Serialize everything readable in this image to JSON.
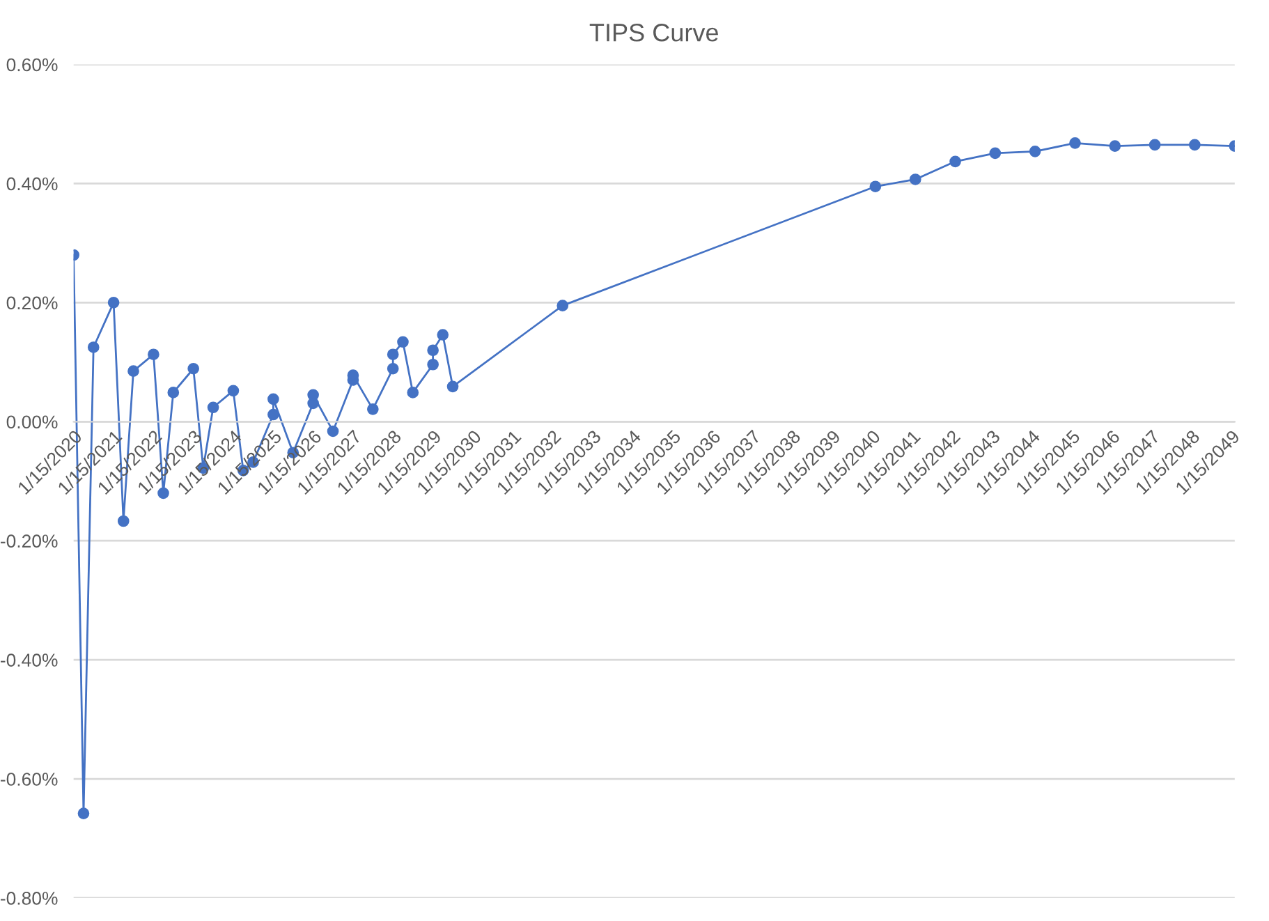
{
  "chart_data": {
    "type": "line",
    "title": "TIPS Curve",
    "x": [
      "2020-01-15",
      "2020-04-15",
      "2020-07-15",
      "2021-01-15",
      "2021-04-15",
      "2021-07-15",
      "2022-01-15",
      "2022-04-15",
      "2022-07-15",
      "2023-01-15",
      "2023-04-15",
      "2023-07-15",
      "2024-01-15",
      "2024-04-15",
      "2024-07-15",
      "2025-01-15",
      "2025-01-15",
      "2025-07-15",
      "2026-01-15",
      "2026-01-15",
      "2026-07-15",
      "2027-01-15",
      "2027-01-15",
      "2027-07-15",
      "2028-01-15",
      "2028-01-15",
      "2028-04-15",
      "2028-07-15",
      "2029-01-15",
      "2029-01-15",
      "2029-04-15",
      "2029-07-15",
      "2032-04-15",
      "2040-02-15",
      "2041-02-15",
      "2042-02-15",
      "2043-02-15",
      "2044-02-15",
      "2045-02-15",
      "2046-02-15",
      "2047-02-15",
      "2048-02-15",
      "2049-02-15"
    ],
    "series": [
      {
        "color": "#4472c4",
        "values": [
          0.28,
          -0.658,
          0.125,
          0.2,
          -0.167,
          0.085,
          0.113,
          -0.12,
          0.049,
          0.089,
          -0.078,
          0.024,
          0.052,
          -0.082,
          -0.068,
          0.012,
          0.038,
          -0.052,
          0.031,
          0.045,
          -0.016,
          0.07,
          0.078,
          0.021,
          0.089,
          0.113,
          0.134,
          0.049,
          0.096,
          0.12,
          0.146,
          0.059,
          0.195,
          0.395,
          0.407,
          0.437,
          0.451,
          0.454,
          0.468,
          0.463,
          0.465,
          0.465,
          0.463
        ]
      }
    ],
    "xlim": [
      "2020-01-15",
      "2049-02-15"
    ],
    "xticks": [
      {
        "value": "2020-01-15",
        "label": "1/15/2020"
      },
      {
        "value": "2021-01-15",
        "label": "1/15/2021"
      },
      {
        "value": "2022-01-15",
        "label": "1/15/2022"
      },
      {
        "value": "2023-01-15",
        "label": "1/15/2023"
      },
      {
        "value": "2024-01-15",
        "label": "1/15/2024"
      },
      {
        "value": "2025-01-15",
        "label": "1/15/2025"
      },
      {
        "value": "2026-01-15",
        "label": "1/15/2026"
      },
      {
        "value": "2027-01-15",
        "label": "1/15/2027"
      },
      {
        "value": "2028-01-15",
        "label": "1/15/2028"
      },
      {
        "value": "2029-01-15",
        "label": "1/15/2029"
      },
      {
        "value": "2030-01-15",
        "label": "1/15/2030"
      },
      {
        "value": "2031-01-15",
        "label": "1/15/2031"
      },
      {
        "value": "2032-01-15",
        "label": "1/15/2032"
      },
      {
        "value": "2033-01-15",
        "label": "1/15/2033"
      },
      {
        "value": "2034-01-15",
        "label": "1/15/2034"
      },
      {
        "value": "2035-01-15",
        "label": "1/15/2035"
      },
      {
        "value": "2036-01-15",
        "label": "1/15/2036"
      },
      {
        "value": "2037-01-15",
        "label": "1/15/2037"
      },
      {
        "value": "2038-01-15",
        "label": "1/15/2038"
      },
      {
        "value": "2039-01-15",
        "label": "1/15/2039"
      },
      {
        "value": "2040-01-15",
        "label": "1/15/2040"
      },
      {
        "value": "2041-01-15",
        "label": "1/15/2041"
      },
      {
        "value": "2042-01-15",
        "label": "1/15/2042"
      },
      {
        "value": "2043-01-15",
        "label": "1/15/2043"
      },
      {
        "value": "2044-01-15",
        "label": "1/15/2044"
      },
      {
        "value": "2045-01-15",
        "label": "1/15/2045"
      },
      {
        "value": "2046-01-15",
        "label": "1/15/2046"
      },
      {
        "value": "2047-01-15",
        "label": "1/15/2047"
      },
      {
        "value": "2048-01-15",
        "label": "1/15/2048"
      },
      {
        "value": "2049-01-15",
        "label": "1/15/2049"
      }
    ],
    "ylim": [
      -0.8,
      0.6
    ],
    "yticks": [
      {
        "value": -0.8,
        "label": "-0.80%"
      },
      {
        "value": -0.6,
        "label": "-0.60%"
      },
      {
        "value": -0.4,
        "label": "-0.40%"
      },
      {
        "value": -0.2,
        "label": "-0.20%"
      },
      {
        "value": 0,
        "label": "0.00%"
      },
      {
        "value": 0.2,
        "label": "0.20%"
      },
      {
        "value": 0.4,
        "label": "0.40%"
      },
      {
        "value": 0.6,
        "label": "0.60%"
      }
    ],
    "grid": "y",
    "marker": "circle",
    "line_style": "solid"
  }
}
